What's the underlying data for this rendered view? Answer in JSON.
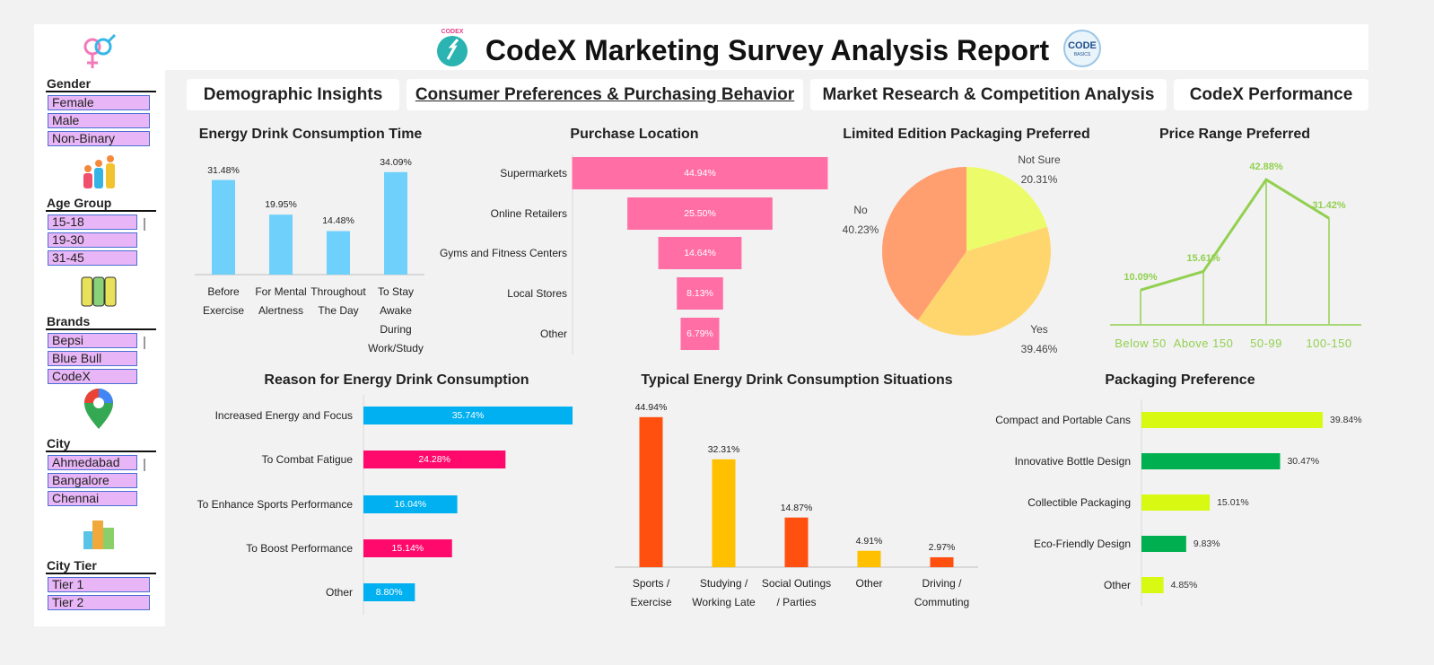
{
  "header": {
    "title": "CodeX Marketing Survey Analysis Report",
    "logo_left": "CODEX",
    "logo_right_top": "CODE",
    "logo_right_bottom": "BASICS"
  },
  "tabs": [
    {
      "label": "Demographic Insights",
      "active": false
    },
    {
      "label": "Consumer Preferences & Purchasing Behavior",
      "active": true
    },
    {
      "label": "Market Research & Competition Analysis",
      "active": false
    },
    {
      "label": "CodeX Performance",
      "active": false
    }
  ],
  "slicers": [
    {
      "title": "Gender",
      "items": [
        "Female",
        "Male",
        "Non-Binary"
      ]
    },
    {
      "title": "Age Group",
      "items": [
        "15-18",
        "19-30",
        "31-45"
      ]
    },
    {
      "title": "Brands",
      "items": [
        "Bepsi",
        "Blue Bull",
        "CodeX"
      ]
    },
    {
      "title": "City",
      "items": [
        "Ahmedabad",
        "Bangalore",
        "Chennai"
      ]
    },
    {
      "title": "City Tier",
      "items": [
        "Tier 1",
        "Tier 2"
      ]
    }
  ],
  "chart_data": [
    {
      "type": "bar",
      "title": "Energy Drink Consumption Time",
      "categories": [
        "Before Exercise",
        "For Mental Alertness",
        "Throughout The Day",
        "To Stay Awake During Work/Study"
      ],
      "values": [
        31.48,
        19.95,
        14.48,
        34.09
      ],
      "value_labels": [
        "31.48%",
        "19.95%",
        "14.48%",
        "34.09%"
      ],
      "color": "#6fd1fb"
    },
    {
      "type": "funnel",
      "title": "Purchase Location",
      "categories": [
        "Supermarkets",
        "Online Retailers",
        "Gyms and Fitness Centers",
        "Local Stores",
        "Other"
      ],
      "values": [
        44.94,
        25.5,
        14.64,
        8.13,
        6.79
      ],
      "value_labels": [
        "44.94%",
        "25.50%",
        "14.64%",
        "8.13%",
        "6.79%"
      ],
      "color": "#ff6fa6"
    },
    {
      "type": "pie",
      "title": "Limited Edition Packaging Preferred",
      "categories": [
        "Not Sure",
        "Yes",
        "No"
      ],
      "values": [
        20.31,
        39.46,
        40.23
      ],
      "value_labels": [
        "20.31%",
        "39.46%",
        "40.23%"
      ],
      "colors": [
        "#ecfb6a",
        "#ffd66e",
        "#ff9f70"
      ]
    },
    {
      "type": "line",
      "title": "Price Range Preferred",
      "categories": [
        "Below 50",
        "Above 150",
        "50-99",
        "100-150"
      ],
      "values": [
        10.09,
        15.61,
        42.88,
        31.42
      ],
      "value_labels": [
        "10.09%",
        "15.61%",
        "42.88%",
        "31.42%"
      ],
      "color": "#92d050"
    },
    {
      "type": "hbar",
      "title": "Reason for Energy Drink Consumption",
      "categories": [
        "Increased Energy and Focus",
        "To Combat Fatigue",
        "To Enhance Sports Performance",
        "To Boost Performance",
        "Other"
      ],
      "values": [
        35.74,
        24.28,
        16.04,
        15.14,
        8.8
      ],
      "value_labels": [
        "35.74%",
        "24.28%",
        "16.04%",
        "15.14%",
        "8.80%"
      ],
      "colors": [
        "#00b0f0",
        "#ff0a6c",
        "#00b0f0",
        "#ff0a6c",
        "#00b0f0"
      ]
    },
    {
      "type": "bar",
      "title": "Typical Energy Drink Consumption Situations",
      "categories": [
        "Sports / Exercise",
        "Studying / Working Late",
        "Social Outings / Parties",
        "Other",
        "Driving / Commuting"
      ],
      "values": [
        44.94,
        32.31,
        14.87,
        4.91,
        2.97
      ],
      "value_labels": [
        "44.94%",
        "32.31%",
        "14.87%",
        "4.91%",
        "2.97%"
      ],
      "colors": [
        "#ff5010",
        "#ffc000",
        "#ff5010",
        "#ffc000",
        "#ff5010"
      ]
    },
    {
      "type": "hbar",
      "title": "Packaging Preference",
      "categories": [
        "Compact and Portable Cans",
        "Innovative Bottle Design",
        "Collectible Packaging",
        "Eco-Friendly Design",
        "Other"
      ],
      "values": [
        39.84,
        30.47,
        15.01,
        9.83,
        4.85
      ],
      "value_labels": [
        "39.84%",
        "30.47%",
        "15.01%",
        "9.83%",
        "4.85%"
      ],
      "colors": [
        "#d8fa12",
        "#00b050",
        "#d8fa12",
        "#00b050",
        "#d8fa12"
      ]
    }
  ]
}
